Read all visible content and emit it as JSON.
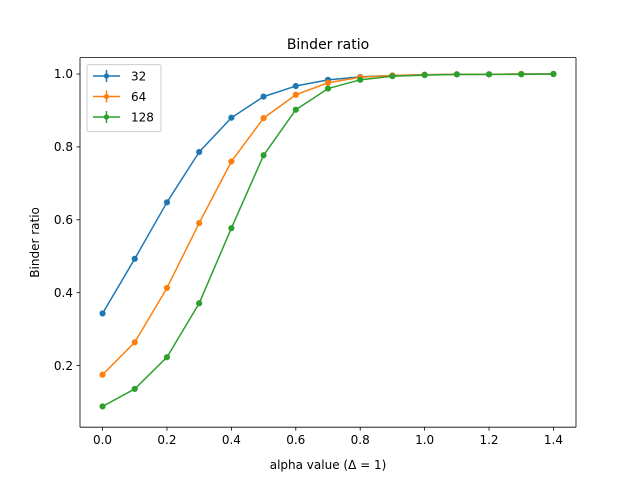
{
  "chart_data": {
    "type": "line",
    "title": "Binder ratio",
    "xlabel": "alpha value (Δ = 1)",
    "ylabel": "Binder ratio",
    "xlim": [
      -0.07,
      1.47
    ],
    "ylim": [
      0.031,
      1.045
    ],
    "xticks": [
      0.0,
      0.2,
      0.4,
      0.6,
      0.8,
      1.0,
      1.2,
      1.4
    ],
    "xtick_labels": [
      "0.0",
      "0.2",
      "0.4",
      "0.6",
      "0.8",
      "1.0",
      "1.2",
      "1.4"
    ],
    "yticks": [
      0.2,
      0.4,
      0.6,
      0.8,
      1.0
    ],
    "ytick_labels": [
      "0.2",
      "0.4",
      "0.6",
      "0.8",
      "1.0"
    ],
    "grid": false,
    "legend_position": "top-left",
    "x": [
      0.0,
      0.1,
      0.2,
      0.3,
      0.4,
      0.5,
      0.6,
      0.7,
      0.8,
      0.9,
      1.0,
      1.1,
      1.2,
      1.3,
      1.4
    ],
    "series": [
      {
        "name": "32",
        "color": "#1f77b4",
        "values": [
          0.343,
          0.493,
          0.648,
          0.786,
          0.88,
          0.938,
          0.967,
          0.984,
          0.992,
          0.996,
          0.998,
          0.999,
          0.999,
          1.0,
          1.0
        ]
      },
      {
        "name": "64",
        "color": "#ff7f0e",
        "values": [
          0.175,
          0.264,
          0.413,
          0.591,
          0.76,
          0.879,
          0.943,
          0.976,
          0.991,
          0.996,
          0.998,
          0.999,
          0.999,
          1.0,
          1.0
        ]
      },
      {
        "name": "128",
        "color": "#2ca02c",
        "values": [
          0.088,
          0.136,
          0.223,
          0.371,
          0.577,
          0.777,
          0.902,
          0.96,
          0.984,
          0.994,
          0.997,
          0.999,
          0.999,
          0.999,
          1.0
        ]
      }
    ]
  }
}
